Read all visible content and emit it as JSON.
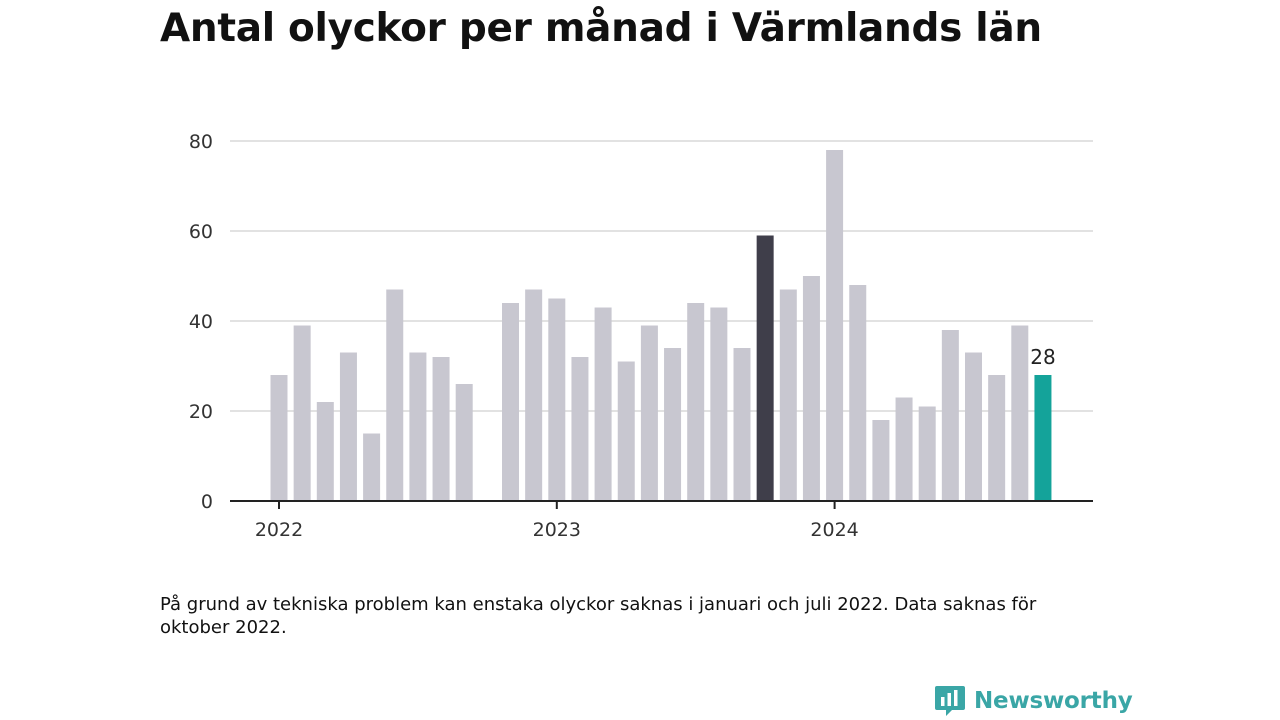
{
  "chart_data": {
    "type": "bar",
    "title": "Antal olyckor per månad i Värmlands län",
    "ylim": [
      0,
      80
    ],
    "yticks": [
      0,
      20,
      40,
      60,
      80
    ],
    "xticks": [
      {
        "label": "2022",
        "index": 0
      },
      {
        "label": "2023",
        "index": 12
      },
      {
        "label": "2024",
        "index": 24
      }
    ],
    "grid": true,
    "categories": [
      "2022-01",
      "2022-02",
      "2022-03",
      "2022-04",
      "2022-05",
      "2022-06",
      "2022-07",
      "2022-08",
      "2022-09",
      "2022-10",
      "2022-11",
      "2022-12",
      "2023-01",
      "2023-02",
      "2023-03",
      "2023-04",
      "2023-05",
      "2023-06",
      "2023-07",
      "2023-08",
      "2023-09",
      "2023-10",
      "2023-11",
      "2023-12",
      "2024-01",
      "2024-02",
      "2024-03",
      "2024-04",
      "2024-05",
      "2024-06",
      "2024-07",
      "2024-08",
      "2024-09",
      "2024-10",
      "2024-11"
    ],
    "values": [
      28,
      39,
      22,
      33,
      15,
      47,
      33,
      32,
      26,
      null,
      44,
      47,
      45,
      32,
      43,
      31,
      39,
      34,
      44,
      43,
      34,
      59,
      47,
      50,
      78,
      48,
      18,
      23,
      21,
      38,
      33,
      28,
      39,
      28,
      null
    ],
    "highlight": [
      {
        "index": 21,
        "color": "#3f3e4a"
      },
      {
        "index": 33,
        "color": "#14a39a"
      }
    ],
    "data_labels": [
      {
        "index": 33,
        "text": "28"
      }
    ],
    "colors": {
      "bar": "#c8c7d0",
      "grid": "#d8d8d8",
      "axis": "#222222"
    }
  },
  "footnote": "På grund av tekniska problem kan enstaka olyckor saknas i januari och juli 2022. Data saknas för oktober 2022.",
  "brand": {
    "name": "Newsworthy",
    "icon": "newsworthy-logo-icon",
    "color": "#3aa6a6"
  }
}
